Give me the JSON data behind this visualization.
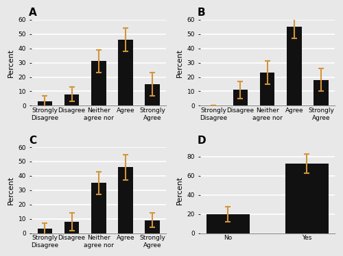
{
  "panels": [
    {
      "label": "A",
      "categories": [
        "Strongly\nDisagree",
        "Disagree",
        "Neither\nagree nor",
        "Agree",
        "Strongly\nAgree"
      ],
      "values": [
        3,
        8,
        31,
        46,
        15
      ],
      "errors": [
        4,
        5,
        8,
        8,
        8
      ],
      "ylim": [
        0,
        60
      ],
      "yticks": [
        0,
        10,
        20,
        30,
        40,
        50,
        60
      ]
    },
    {
      "label": "B",
      "categories": [
        "Strongly\nDisagree",
        "Disagree",
        "Neither\nagree nor",
        "Agree",
        "Strongly\nAgree"
      ],
      "values": [
        0,
        11,
        23,
        55,
        18
      ],
      "errors": [
        0,
        6,
        8,
        8,
        8
      ],
      "ylim": [
        0,
        60
      ],
      "yticks": [
        0,
        10,
        20,
        30,
        40,
        50,
        60
      ]
    },
    {
      "label": "C",
      "categories": [
        "Strongly\nDisagree",
        "Disagree",
        "Neither\nagree nor",
        "Agree",
        "Strongly\nAgree"
      ],
      "values": [
        3,
        8,
        35,
        46,
        9
      ],
      "errors": [
        4,
        6,
        8,
        9,
        5
      ],
      "ylim": [
        0,
        60
      ],
      "yticks": [
        0,
        10,
        20,
        30,
        40,
        50,
        60
      ]
    },
    {
      "label": "D",
      "categories": [
        "No",
        "Yes"
      ],
      "values": [
        20,
        73
      ],
      "errors": [
        8,
        10
      ],
      "ylim": [
        0,
        90
      ],
      "yticks": [
        0,
        20,
        40,
        60,
        80
      ]
    }
  ],
  "bar_color": "#111111",
  "error_color": "#d4943a",
  "bar_width": 0.55,
  "ylabel": "Percent",
  "ylabel_fontsize": 8,
  "tick_fontsize": 6.5,
  "panel_label_fontsize": 11,
  "background_color": "#e8e8e8",
  "axes_facecolor": "#e8e8e8",
  "grid_color": "#ffffff",
  "grid_linewidth": 1.2,
  "spine_color": "#888888"
}
